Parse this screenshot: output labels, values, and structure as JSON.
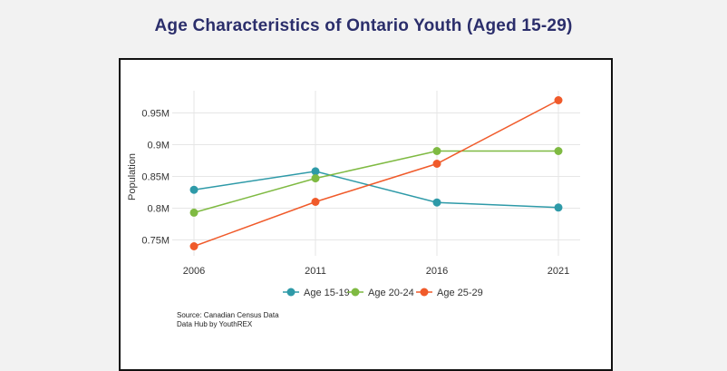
{
  "title": "Age Characteristics of Ontario Youth (Aged 15-29)",
  "source_line1": "Source: Canadian Census Data",
  "source_line2": "Data Hub by YouthREX",
  "chart_data": {
    "type": "line",
    "title": "Age Characteristics of Ontario Youth (Aged 15-29)",
    "xlabel": "",
    "ylabel": "Population",
    "x": [
      2006,
      2011,
      2016,
      2021
    ],
    "x_tick_labels": [
      "2006",
      "2011",
      "2016",
      "2021"
    ],
    "ylim": [
      0.725,
      0.985
    ],
    "y_ticks": [
      0.75,
      0.8,
      0.85,
      0.9,
      0.95
    ],
    "y_tick_labels": [
      "0.75M",
      "0.8M",
      "0.85M",
      "0.9M",
      "0.95M"
    ],
    "grid": true,
    "legend_position": "bottom",
    "series": [
      {
        "name": "Age 15-19",
        "color": "#2e9aa8",
        "values": [
          0.829,
          0.858,
          0.809,
          0.801
        ]
      },
      {
        "name": "Age 20-24",
        "color": "#7fba42",
        "values": [
          0.793,
          0.847,
          0.89,
          0.89
        ]
      },
      {
        "name": "Age 25-29",
        "color": "#f05a2a",
        "values": [
          0.74,
          0.81,
          0.87,
          0.97
        ]
      }
    ]
  }
}
